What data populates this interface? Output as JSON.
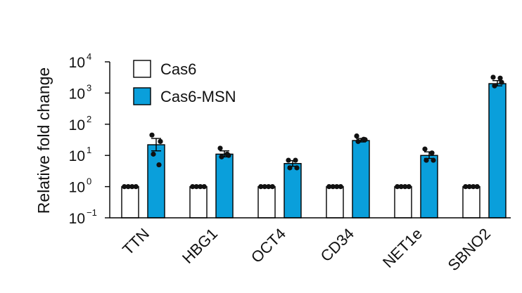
{
  "chart_data": {
    "type": "bar",
    "scale": "log",
    "ylabel": "Relative fold change",
    "xlabel": "",
    "ylim": [
      0.1,
      10000
    ],
    "yticks": [
      {
        "value": 0.1,
        "base": "10",
        "exp": "−1"
      },
      {
        "value": 1,
        "base": "10",
        "exp": "0"
      },
      {
        "value": 10,
        "base": "10",
        "exp": "1"
      },
      {
        "value": 100,
        "base": "10",
        "exp": "2"
      },
      {
        "value": 1000,
        "base": "10",
        "exp": "3"
      },
      {
        "value": 10000,
        "base": "10",
        "exp": "4"
      }
    ],
    "categories": [
      "TTN",
      "HBG1",
      "OCT4",
      "CD34",
      "NET1e",
      "SBNO2"
    ],
    "legend_position": "top-left",
    "series": [
      {
        "name": "Cas6",
        "color": "#ffffff",
        "values": [
          1,
          1,
          1,
          1,
          1,
          1
        ],
        "points": [
          [
            1,
            1,
            1,
            1
          ],
          [
            1,
            1,
            1,
            1
          ],
          [
            1,
            1,
            1,
            1
          ],
          [
            1,
            1,
            1,
            1
          ],
          [
            1,
            1,
            1,
            1
          ],
          [
            1,
            1,
            1,
            1
          ]
        ],
        "error": [
          null,
          null,
          null,
          null,
          null,
          null
        ]
      },
      {
        "name": "Cas6-MSN",
        "color": "#0a9fdb",
        "values": [
          22,
          11,
          5.5,
          30,
          10,
          2000
        ],
        "points": [
          [
            45,
            28,
            11,
            5
          ],
          [
            17,
            10,
            9,
            11
          ],
          [
            7,
            4,
            4,
            7
          ],
          [
            42,
            32,
            28,
            33
          ],
          [
            16,
            7,
            7,
            12
          ],
          [
            3200,
            2200,
            1700,
            3000
          ]
        ],
        "error": [
          [
            14,
            35
          ],
          [
            9,
            14
          ],
          [
            4.5,
            6.8
          ],
          [
            27,
            35
          ],
          [
            8,
            13
          ],
          [
            1700,
            2500
          ]
        ]
      }
    ]
  }
}
